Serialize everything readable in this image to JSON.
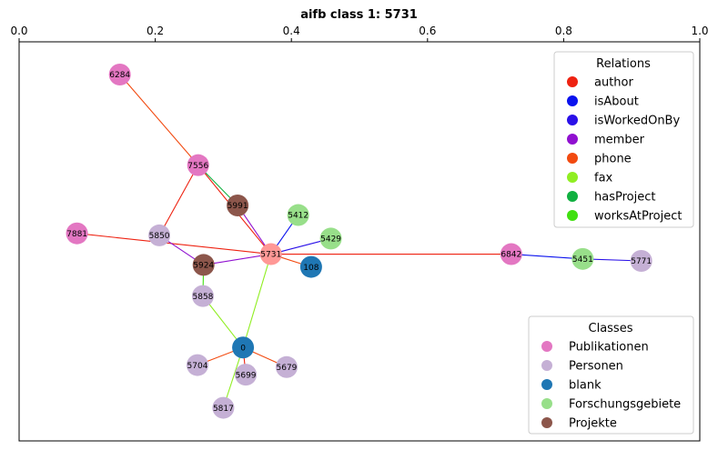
{
  "chart_data": {
    "type": "network",
    "title": "aifb class 1: 5731",
    "xlim": [
      0.0,
      1.0
    ],
    "x_ticks": [
      "0.0",
      "0.2",
      "0.4",
      "0.6",
      "0.8",
      "1.0"
    ],
    "x_axis_position": "top",
    "y_axis_visible": false,
    "grid": false,
    "nodes": [
      {
        "id": "6284",
        "x": 0.148,
        "y": 0.918,
        "class": "Publikationen"
      },
      {
        "id": "7556",
        "x": 0.263,
        "y": 0.691,
        "class": "Publikationen"
      },
      {
        "id": "5991",
        "x": 0.321,
        "y": 0.59,
        "class": "Projekte"
      },
      {
        "id": "5412",
        "x": 0.41,
        "y": 0.566,
        "class": "Forschungsgebiete"
      },
      {
        "id": "5429",
        "x": 0.458,
        "y": 0.507,
        "class": "Forschungsgebiete"
      },
      {
        "id": "7881",
        "x": 0.085,
        "y": 0.52,
        "class": "Publikationen"
      },
      {
        "id": "5850",
        "x": 0.206,
        "y": 0.515,
        "class": "Personen"
      },
      {
        "id": "5731",
        "x": 0.37,
        "y": 0.468,
        "class": "target"
      },
      {
        "id": "6842",
        "x": 0.723,
        "y": 0.468,
        "class": "Publikationen"
      },
      {
        "id": "5451",
        "x": 0.828,
        "y": 0.456,
        "class": "Forschungsgebiete"
      },
      {
        "id": "5771",
        "x": 0.914,
        "y": 0.451,
        "class": "Personen"
      },
      {
        "id": "5924",
        "x": 0.271,
        "y": 0.441,
        "class": "Projekte"
      },
      {
        "id": "108",
        "x": 0.429,
        "y": 0.436,
        "class": "blank"
      },
      {
        "id": "5858",
        "x": 0.27,
        "y": 0.363,
        "class": "Personen"
      },
      {
        "id": "0",
        "x": 0.329,
        "y": 0.234,
        "class": "blank"
      },
      {
        "id": "5704",
        "x": 0.262,
        "y": 0.19,
        "class": "Personen"
      },
      {
        "id": "5679",
        "x": 0.393,
        "y": 0.185,
        "class": "Personen"
      },
      {
        "id": "5699",
        "x": 0.333,
        "y": 0.166,
        "class": "Personen"
      },
      {
        "id": "5817",
        "x": 0.3,
        "y": 0.083,
        "class": "Personen"
      }
    ],
    "edges": [
      {
        "source": "6284",
        "target": "7556",
        "relation": "phone"
      },
      {
        "source": "7556",
        "target": "5991",
        "relation": "hasProject"
      },
      {
        "source": "7556",
        "target": "5850",
        "relation": "author"
      },
      {
        "source": "7556",
        "target": "5731",
        "relation": "author"
      },
      {
        "source": "5991",
        "target": "5731",
        "relation": "member"
      },
      {
        "source": "5412",
        "target": "5731",
        "relation": "isAbout"
      },
      {
        "source": "5429",
        "target": "5731",
        "relation": "isWorkedOnBy"
      },
      {
        "source": "7881",
        "target": "5731",
        "relation": "author"
      },
      {
        "source": "5850",
        "target": "5924",
        "relation": "member"
      },
      {
        "source": "5924",
        "target": "5731",
        "relation": "member"
      },
      {
        "source": "5731",
        "target": "108",
        "relation": "phone"
      },
      {
        "source": "5731",
        "target": "6842",
        "relation": "author"
      },
      {
        "source": "6842",
        "target": "5451",
        "relation": "isAbout"
      },
      {
        "source": "5451",
        "target": "5771",
        "relation": "isWorkedOnBy"
      },
      {
        "source": "5924",
        "target": "5858",
        "relation": "worksAtProject"
      },
      {
        "source": "5858",
        "target": "0",
        "relation": "fax"
      },
      {
        "source": "5731",
        "target": "0",
        "relation": "fax"
      },
      {
        "source": "0",
        "target": "5704",
        "relation": "phone"
      },
      {
        "source": "0",
        "target": "5679",
        "relation": "phone"
      },
      {
        "source": "0",
        "target": "5699",
        "relation": "author"
      },
      {
        "source": "0",
        "target": "5817",
        "relation": "fax"
      }
    ],
    "relations_legend": {
      "title": "Relations",
      "placement": "upper right",
      "items": [
        {
          "label": "author",
          "color": "#ee2211"
        },
        {
          "label": "isAbout",
          "color": "#0a12ee"
        },
        {
          "label": "isWorkedOnBy",
          "color": "#2a10e8"
        },
        {
          "label": "member",
          "color": "#9010d0"
        },
        {
          "label": "phone",
          "color": "#f24a10"
        },
        {
          "label": "fax",
          "color": "#90ee22"
        },
        {
          "label": "hasProject",
          "color": "#10b040"
        },
        {
          "label": "worksAtProject",
          "color": "#40e010"
        }
      ]
    },
    "classes_legend": {
      "title": "Classes",
      "placement": "lower right",
      "items": [
        {
          "label": "Publikationen",
          "color": "#e377c2"
        },
        {
          "label": "Personen",
          "color": "#c5b0d5"
        },
        {
          "label": "blank",
          "color": "#1f77b4"
        },
        {
          "label": "Forschungsgebiete",
          "color": "#98df8a"
        },
        {
          "label": "Projekte",
          "color": "#8c564b"
        }
      ]
    },
    "target_node_color": "#ff9896"
  }
}
